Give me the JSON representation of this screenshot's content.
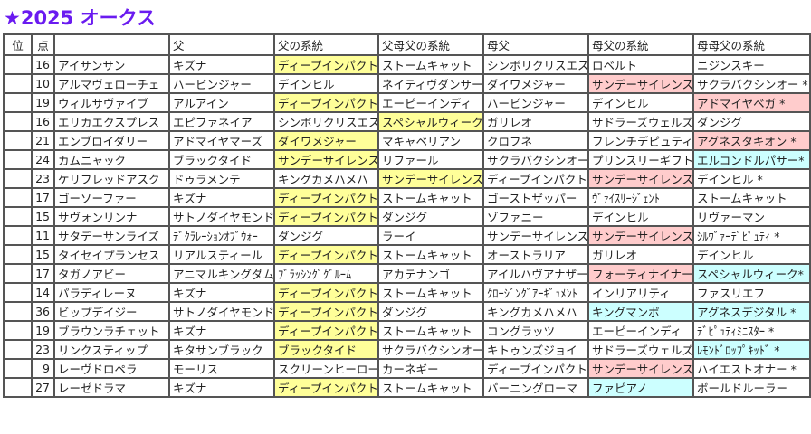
{
  "title": "★2025 オークス",
  "headers": [
    "位",
    "点",
    "",
    "父",
    "父の系統",
    "父母父の系統",
    "母父",
    "母父の系統",
    "母母父の系統"
  ],
  "highlight_colors": {
    "y": "#ffff99",
    "p": "#ffcccc",
    "c": "#ccffff"
  },
  "rows": [
    {
      "cells": [
        "",
        "16",
        "アイサンサン",
        "キズナ",
        "ディープインパクト",
        "ストームキャット",
        "シンボリクリスエス",
        "ロベルト",
        "ニジンスキー"
      ],
      "hl": [
        "",
        "",
        "",
        "",
        "y",
        "",
        "",
        "",
        ""
      ]
    },
    {
      "cells": [
        "",
        "10",
        "アルマヴェローチェ",
        "ハービンジャー",
        "デインヒル",
        "ネイティヴダンサー",
        "ダイワメジャー",
        "サンデーサイレンス",
        "サクラバクシンオー *"
      ],
      "hl": [
        "",
        "",
        "",
        "",
        "",
        "",
        "",
        "p",
        ""
      ]
    },
    {
      "cells": [
        "",
        "19",
        "ウィルサヴァイブ",
        "アルアイン",
        "ディープインパクト",
        "エーピーインディ",
        "ハービンジャー",
        "デインヒル",
        "アドマイヤベガ *"
      ],
      "hl": [
        "",
        "",
        "",
        "",
        "y",
        "",
        "",
        "",
        "p"
      ]
    },
    {
      "cells": [
        "",
        "16",
        "エリカエクスプレス",
        "エピファネイア",
        "シンボリクリスエス",
        "スペシャルウィーク",
        "ガリレオ",
        "サドラーズウェルズ",
        "ダンジグ"
      ],
      "hl": [
        "",
        "",
        "",
        "",
        "",
        "y",
        "",
        "",
        ""
      ]
    },
    {
      "cells": [
        "",
        "21",
        "エンブロイダリー",
        "アドマイヤマーズ",
        "ダイワメジャー",
        "マキャベリアン",
        "クロフネ",
        "フレンチデピュティ",
        "アグネスタキオン *"
      ],
      "hl": [
        "",
        "",
        "",
        "",
        "y",
        "",
        "",
        "",
        "p"
      ]
    },
    {
      "cells": [
        "",
        "24",
        "カムニャック",
        "ブラックタイド",
        "サンデーサイレンス",
        "リファール",
        "サクラバクシンオー",
        "プリンスリーギフト",
        "エルコンドルパサー*"
      ],
      "hl": [
        "",
        "",
        "",
        "",
        "y",
        "",
        "",
        "",
        "c"
      ]
    },
    {
      "cells": [
        "",
        "23",
        "ケリフレッドアスク",
        "ドゥラメンテ",
        "キングカメハメハ",
        "サンデーサイレンス",
        "ディープインパクト",
        "サンデーサイレンス",
        "デインヒル *"
      ],
      "hl": [
        "",
        "",
        "",
        "",
        "",
        "y",
        "",
        "p",
        ""
      ]
    },
    {
      "cells": [
        "",
        "17",
        "ゴーソーファー",
        "キズナ",
        "ディープインパクト",
        "ストームキャット",
        "ゴーストザッパー",
        "ｳﾞｧｲｽﾘｰｼﾞｪﾝﾄ",
        "ストームキャット"
      ],
      "hl": [
        "",
        "",
        "",
        "",
        "y",
        "",
        "",
        "",
        ""
      ]
    },
    {
      "cells": [
        "",
        "15",
        "サヴォンリンナ",
        "サトノダイヤモンド",
        "ディープインパクト",
        "ダンジグ",
        "ゾファニー",
        "デインヒル",
        "リヴァーマン"
      ],
      "hl": [
        "",
        "",
        "",
        "",
        "y",
        "",
        "",
        "",
        ""
      ]
    },
    {
      "cells": [
        "",
        "11",
        "サタデーサンライズ",
        "ﾃﾞｸﾗﾚｰｼｮﾝｵﾌﾞｳｫｰ",
        "ダンジグ",
        "ラーイ",
        "サンデーサイレンス",
        "サンデーサイレンス",
        "ｼﾙｳﾞｧｰﾃﾞﾋﾟｭﾃｨ *"
      ],
      "hl": [
        "",
        "",
        "",
        "",
        "",
        "",
        "",
        "p",
        ""
      ]
    },
    {
      "cells": [
        "",
        "15",
        "タイセイプランセス",
        "リアルスティール",
        "ディープインパクト",
        "ストームキャット",
        "オーストラリア",
        "ガリレオ",
        "デインヒル"
      ],
      "hl": [
        "",
        "",
        "",
        "",
        "y",
        "",
        "",
        "",
        ""
      ]
    },
    {
      "cells": [
        "",
        "17",
        "タガノアビー",
        "アニマルキングダム",
        "ﾌﾞﾗｯｼﾝｸﾞｸﾞﾙｰﾑ",
        "アカテナンゴ",
        "アイルハヴアナザー",
        "フォーティナイナー",
        "スペシャルウィーク*"
      ],
      "hl": [
        "",
        "",
        "",
        "",
        "",
        "",
        "",
        "p",
        "c"
      ]
    },
    {
      "cells": [
        "",
        "14",
        "パラディレーヌ",
        "キズナ",
        "ディープインパクト",
        "ストームキャット",
        "ｸﾛｰｼﾞﾝｸﾞｱｰｷﾞｭﾒﾝﾄ",
        "インリアリティ",
        "ファスリエフ"
      ],
      "hl": [
        "",
        "",
        "",
        "",
        "y",
        "",
        "",
        "",
        ""
      ]
    },
    {
      "cells": [
        "",
        "36",
        "ビップデイジー",
        "サトノダイヤモンド",
        "ディープインパクト",
        "ダンジグ",
        "キングカメハメハ",
        "キングマンボ",
        "アグネスデジタル *"
      ],
      "hl": [
        "",
        "",
        "",
        "",
        "y",
        "",
        "",
        "c",
        "c"
      ]
    },
    {
      "cells": [
        "",
        "19",
        "ブラウンラチェット",
        "キズナ",
        "ディープインパクト",
        "ストームキャット",
        "コングラッツ",
        "エーピーインディ",
        "ﾃﾞﾋﾟｭﾃｨﾐﾆｽﾀｰ *"
      ],
      "hl": [
        "",
        "",
        "",
        "",
        "y",
        "",
        "",
        "",
        ""
      ]
    },
    {
      "cells": [
        "",
        "23",
        "リンクスティップ",
        "キタサンブラック",
        "ブラックタイド",
        "サクラバクシンオー",
        "キトゥンズジョイ",
        "サドラーズウェルズ",
        "ﾚﾓﾝﾄﾞﾛｯﾌﾟｷｯﾄﾞ *"
      ],
      "hl": [
        "",
        "",
        "",
        "",
        "y",
        "",
        "",
        "",
        "c"
      ]
    },
    {
      "cells": [
        "",
        "9",
        "レーヴドロペラ",
        "モーリス",
        "スクリーンヒーロー",
        "カーネギー",
        "ディープインパクト",
        "サンデーサイレンス",
        "ハイエストオナー *"
      ],
      "hl": [
        "",
        "",
        "",
        "",
        "",
        "",
        "",
        "p",
        ""
      ]
    },
    {
      "cells": [
        "",
        "27",
        "レーゼドラマ",
        "キズナ",
        "ディープインパクト",
        "ストームキャット",
        "バーニングローマ",
        "ファピアノ",
        "ボールドルーラー"
      ],
      "hl": [
        "",
        "",
        "",
        "",
        "y",
        "",
        "",
        "c",
        ""
      ]
    }
  ]
}
